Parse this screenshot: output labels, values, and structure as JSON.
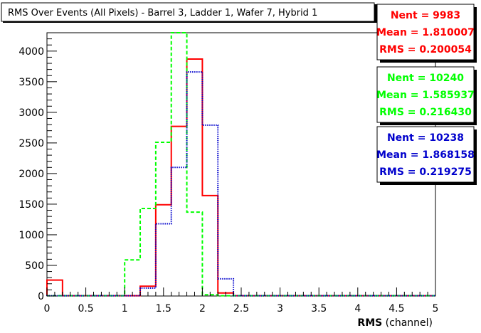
{
  "chart_data": {
    "type": "histogram",
    "title": "RMS Over Events (All Pixels) - Barrel 3, Ladder 1, Wafer 7, Hybrid 1",
    "xlabel": "RMS (channel)",
    "xlabel_main": "RMS",
    "xlabel_unit": " (channel)",
    "ylabel": "",
    "xlim": [
      0,
      5
    ],
    "ylim": [
      0,
      4300
    ],
    "bin_width": 0.2,
    "x_ticks": [
      0,
      0.5,
      1,
      1.5,
      2,
      2.5,
      3,
      3.5,
      4,
      4.5,
      5
    ],
    "x_tick_labels": [
      "0",
      "0.5",
      "1",
      "1.5",
      "2",
      "2.5",
      "3",
      "3.5",
      "4",
      "4.5",
      "5"
    ],
    "y_ticks": [
      0,
      500,
      1000,
      1500,
      2000,
      2500,
      3000,
      3500,
      4000
    ],
    "y_tick_labels": [
      "0",
      "500",
      "1000",
      "1500",
      "2000",
      "2500",
      "3000",
      "3500",
      "4000"
    ],
    "grid": false,
    "legend": "stat boxes top-right",
    "series": [
      {
        "color": "#ff0000",
        "style": "solid",
        "bin_edges": [
          0,
          0.2,
          1.2,
          1.4,
          1.6,
          1.8,
          2.0,
          2.2,
          2.4,
          5.0
        ],
        "counts": [
          260,
          5,
          160,
          1490,
          2770,
          3870,
          1640,
          50,
          5
        ],
        "stats": {
          "nent_label": "Nent = 9983",
          "mean_label": "Mean = 1.810007",
          "rms_label": "RMS = 0.200054"
        }
      },
      {
        "color": "#00ff00",
        "style": "dashed",
        "bin_edges": [
          0,
          1.0,
          1.2,
          1.4,
          1.6,
          1.8,
          2.0,
          2.2,
          5.0
        ],
        "counts": [
          5,
          590,
          1430,
          2510,
          4300,
          1370,
          20,
          5
        ],
        "stats": {
          "nent_label": "Nent = 10240",
          "mean_label": "Mean = 1.585937",
          "rms_label": "RMS = 0.216430"
        }
      },
      {
        "color": "#0000cc",
        "style": "dotted",
        "bin_edges": [
          0,
          1.2,
          1.4,
          1.6,
          1.8,
          2.0,
          2.2,
          2.4,
          5.0
        ],
        "counts": [
          5,
          130,
          1180,
          2100,
          3660,
          2790,
          280,
          5
        ],
        "stats": {
          "nent_label": "Nent = 10238",
          "mean_label": "Mean = 1.868158",
          "rms_label": "RMS = 0.219275"
        }
      }
    ]
  }
}
